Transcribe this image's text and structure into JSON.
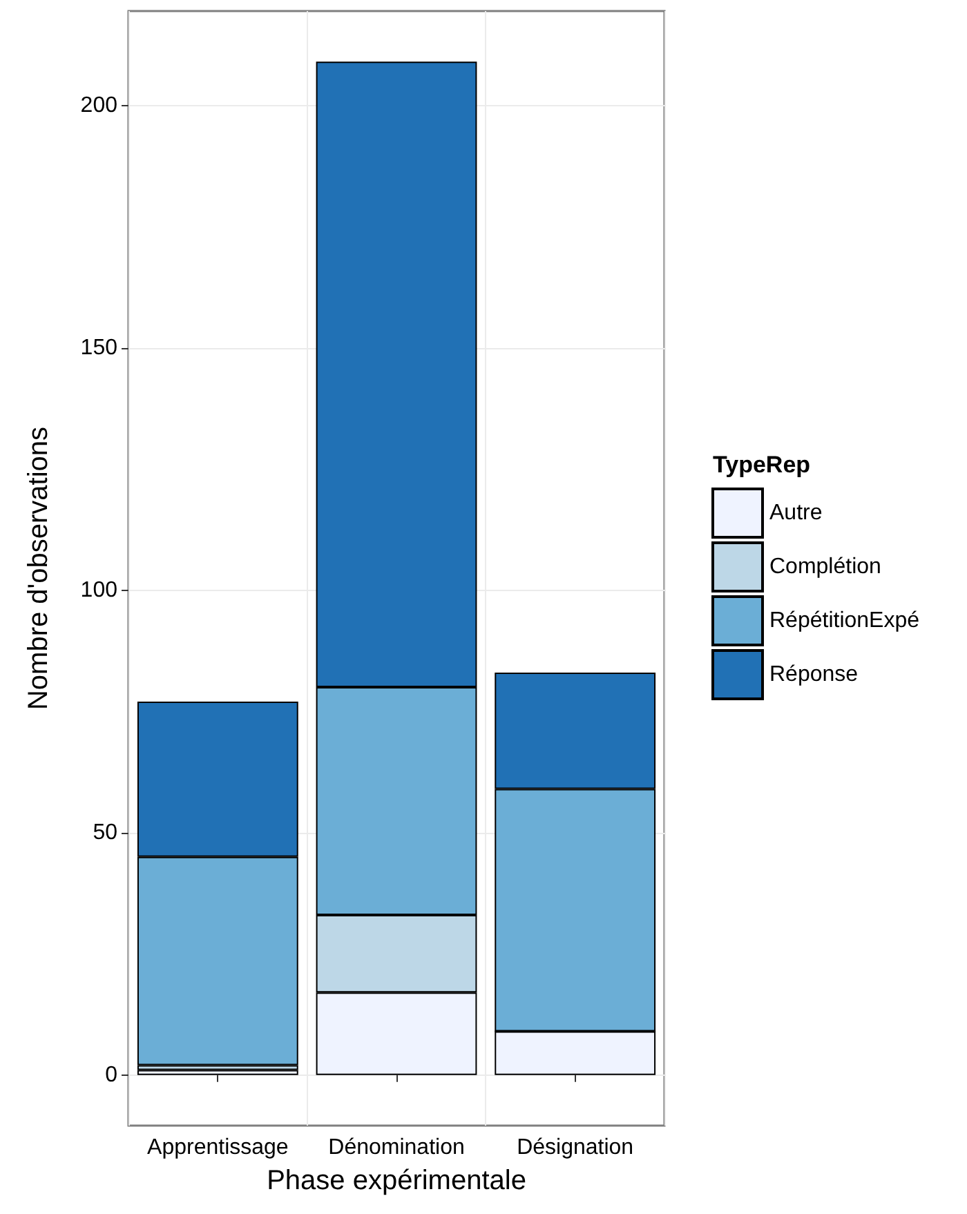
{
  "chart_data": {
    "type": "bar",
    "stacked": true,
    "xlabel": "Phase expérimentale",
    "ylabel": "Nombre d'observations",
    "legend_title": "TypeRep",
    "categories": [
      "Apprentissage",
      "Dénomination",
      "Désignation"
    ],
    "series": [
      {
        "name": "Autre",
        "color": "#eff3ff",
        "values": [
          1,
          17,
          9
        ]
      },
      {
        "name": "Complétion",
        "color": "#bdd7e7",
        "values": [
          1,
          16,
          0
        ]
      },
      {
        "name": "RépétitionExpé",
        "color": "#6baed6",
        "values": [
          43,
          47,
          50
        ]
      },
      {
        "name": "Réponse",
        "color": "#2171b5",
        "values": [
          32,
          129,
          24
        ]
      }
    ],
    "ylim": [
      -10.45,
      219.45
    ],
    "yticks": [
      0,
      50,
      100,
      150,
      200
    ],
    "grid": true,
    "legend": "right"
  }
}
